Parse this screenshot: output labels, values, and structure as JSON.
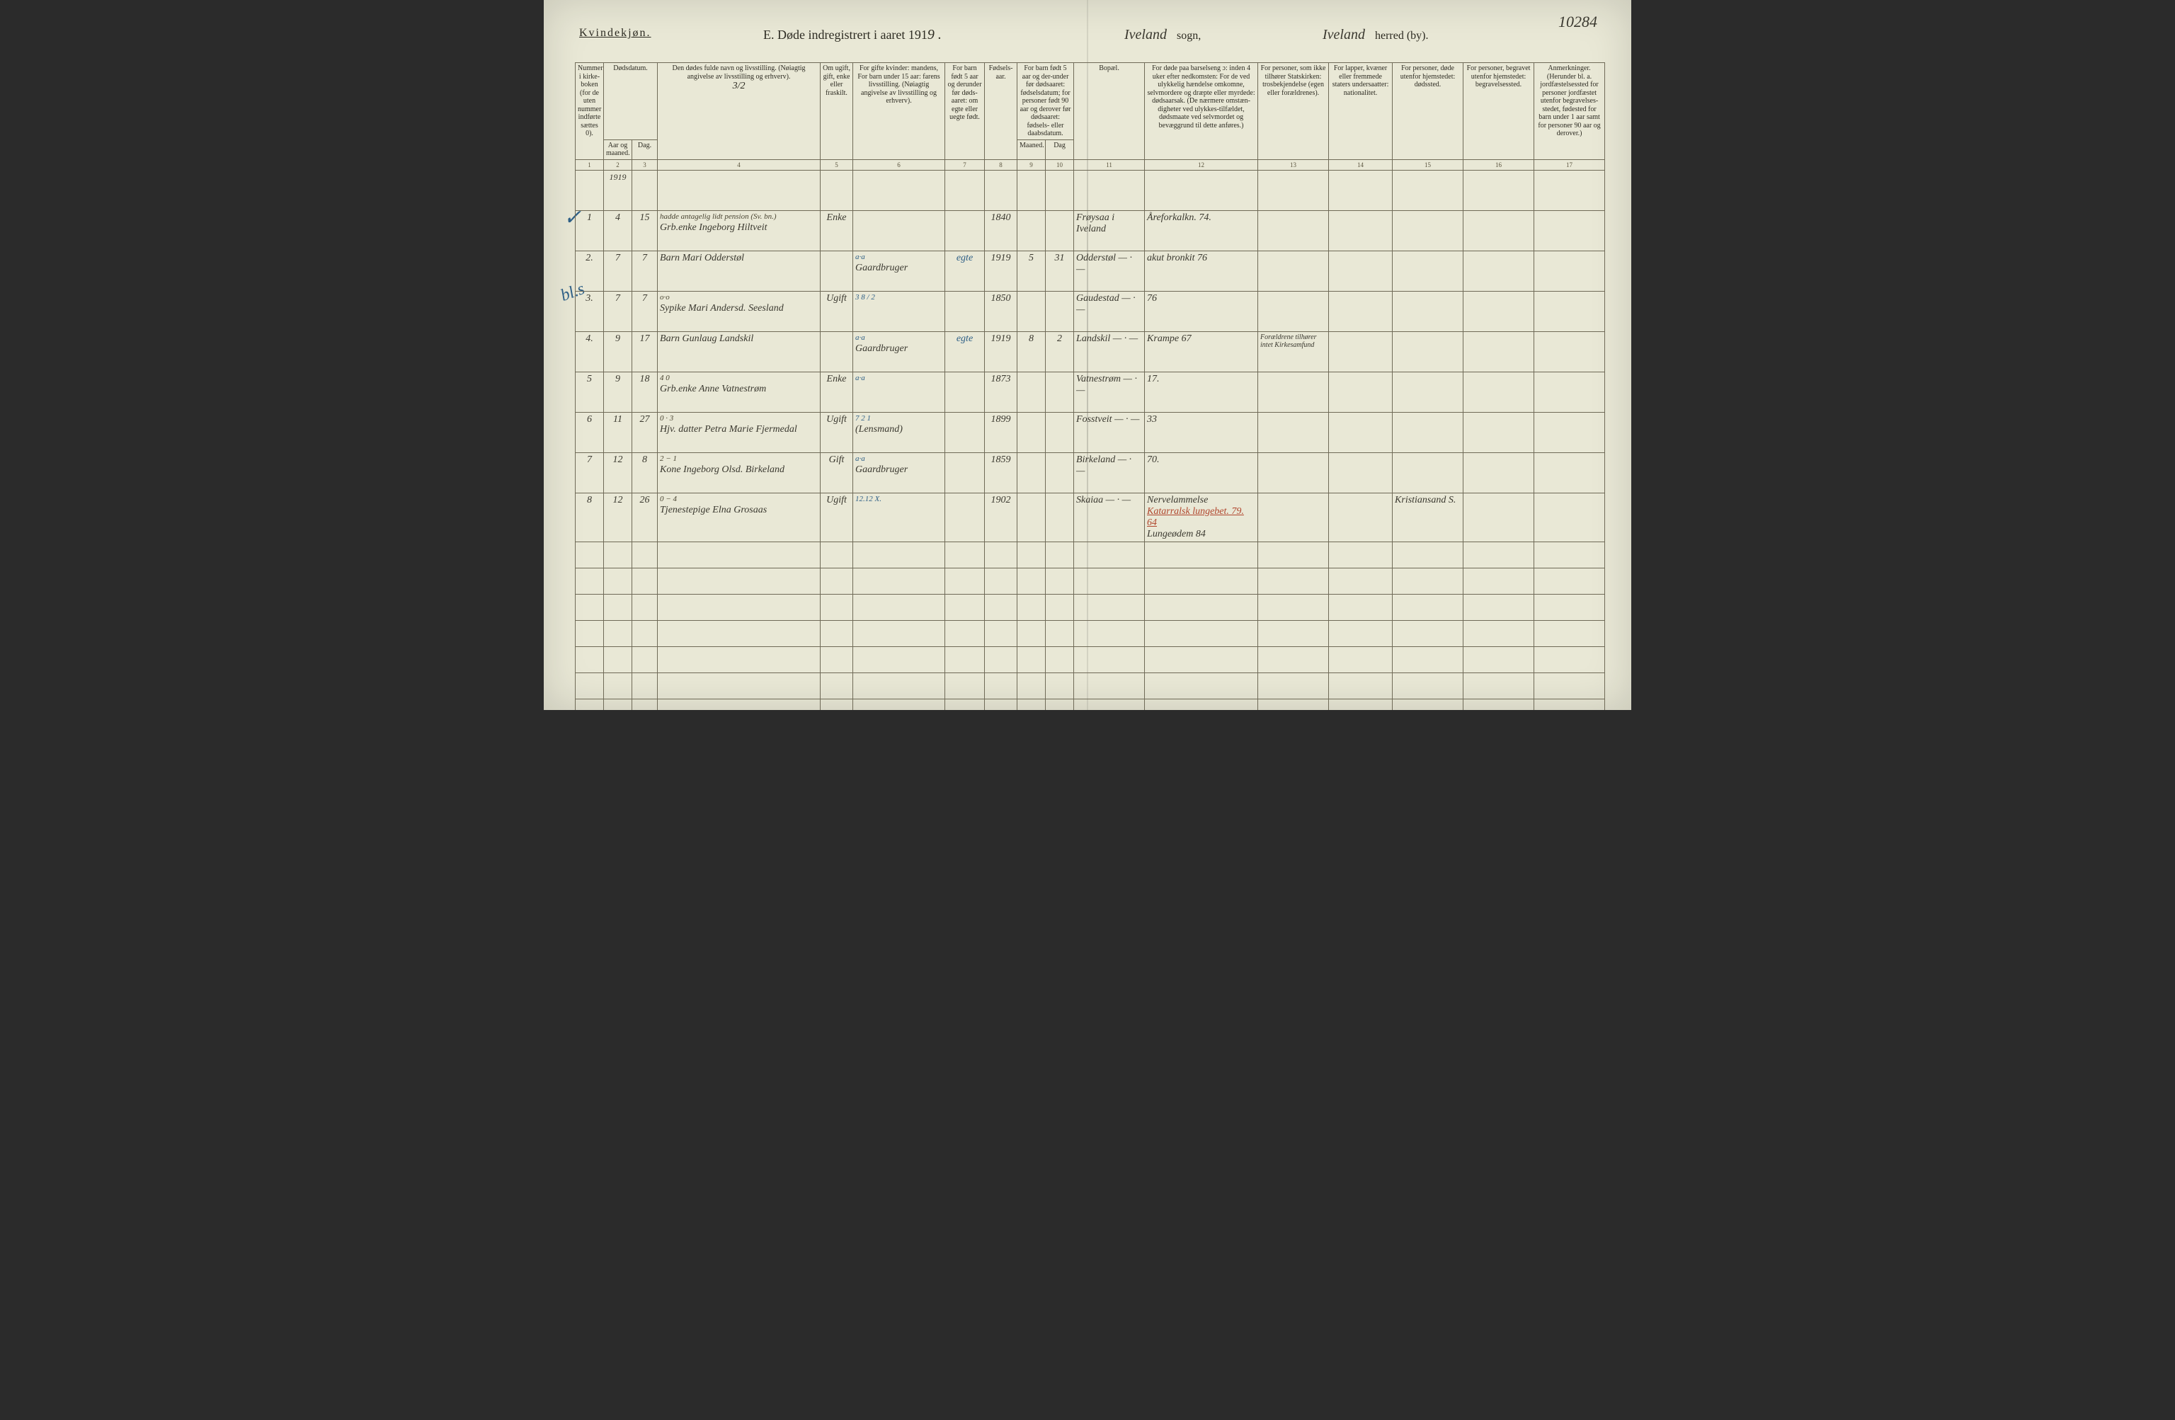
{
  "page_number_hand": "10284",
  "header": {
    "gender": "Kvindekjøn.",
    "title_prefix": "E.  Døde indregistrert i aaret 191",
    "year_suffix": "9 .",
    "sogn_hand": "Iveland",
    "sogn_label": "sogn,",
    "herred_hand": "Iveland",
    "herred_label": "herred (by)."
  },
  "columns": {
    "c1": "Nummer i kirke-boken (for de uten nummer indførte sættes 0).",
    "c2a": "Dødsdatum.",
    "c2": "Aar og maaned.",
    "c3": "Dag.",
    "c4": "Den dødes fulde navn og livsstilling.\n(Nøiagtig angivelse av livsstilling og erhverv).",
    "c4_hand": "3/2",
    "c5": "Om ugift, gift, enke eller fraskilt.",
    "c6": "For gifte kvinder:\nmandens,\nFor barn under 15 aar:\nfarens livsstilling.\n(Nøiagtig angivelse av livsstilling og erhverv).",
    "c7": "For barn født 5 aar og derunder før døds-aaret: om egte eller uegte født.",
    "c8": "Fødsels-aar.",
    "c9_10": "For barn født 5 aar og der-under før dødsaaret: fødselsdatum; for personer født 90 aar og derover før dødsaaret: fødsels- eller daabsdatum.",
    "c9": "Maaned.",
    "c10": "Dag",
    "c11": "Bopæl.",
    "c12": "For døde paa barselseng ɔ: inden 4 uker efter nedkomsten: For de ved ulykkelig hændelse omkomne, selvmordere og dræpte eller myrdede: dødsaarsak. (De nærmere omstæn-digheter ved ulykkes-tilfældet, dødsmaate ved selvmordet og bevæggrund til dette anføres.)",
    "c13": "For personer, som ikke tilhører Statskirken: trosbekjendelse (egen eller forældrenes).",
    "c14": "For lapper, kvæner eller fremmede staters undersaatter: nationalitet.",
    "c15": "For personer, døde utenfor hjemstedet: dødssted.",
    "c16": "For personer, begravet utenfor hjemstedet: begravelsessted.",
    "c17": "Anmerkninger.\n(Herunder bl. a. jordfæstelsessted for personer jordfæstet utenfor begravelses-stedet, fødested for barn under 1 aar samt for personer 90 aar og derover.)"
  },
  "colnums": [
    "1",
    "2",
    "3",
    "4",
    "5",
    "6",
    "7",
    "8",
    "9",
    "10",
    "11",
    "12",
    "13",
    "14",
    "15",
    "16",
    "17"
  ],
  "year_row": "1919",
  "rows": [
    {
      "n": "1",
      "mnd": "4",
      "dag": "15",
      "name_sup": "hadde antagelig lidt pension (Sv. bn.)",
      "name": "Grb.enke Ingeborg Hiltveit",
      "stand": "Enke",
      "c6_sup": "",
      "c6": "",
      "c7": "",
      "c8": "1840",
      "c9": "",
      "c10": "",
      "c11": "Frøysaa i Iveland",
      "c12": "Åreforkalkn. 74.",
      "c13": "",
      "c14": "",
      "c15": "",
      "c16": "",
      "c17": ""
    },
    {
      "n": "2.",
      "mnd": "7",
      "dag": "7",
      "name_sup": "",
      "name": "Barn Mari Odderstøl",
      "stand": "",
      "c6_sup": "a·a",
      "c6": "Gaardbruger",
      "c7": "egte",
      "c8": "1919",
      "c9": "5",
      "c10": "31",
      "c11": "Odderstøl — · —",
      "c12": "akut bronkit  76",
      "c13": "",
      "c14": "",
      "c15": "",
      "c16": "",
      "c17": ""
    },
    {
      "n": "3.",
      "mnd": "7",
      "dag": "7",
      "name_sup": "o·o",
      "name": "Sypike Mari Andersd. Seesland",
      "stand": "Ugift",
      "c6_sup": "3 8 / 2",
      "c6": "",
      "c7": "",
      "c8": "1850",
      "c9": "",
      "c10": "",
      "c11": "Gaudestad — · —",
      "c12": "76",
      "c13": "",
      "c14": "",
      "c15": "",
      "c16": "",
      "c17": ""
    },
    {
      "n": "4.",
      "mnd": "9",
      "dag": "17",
      "name_sup": "",
      "name": "Barn Gunlaug Landskil",
      "stand": "",
      "c6_sup": "a·a",
      "c6": "Gaardbruger",
      "c7": "egte",
      "c8": "1919",
      "c9": "8",
      "c10": "2",
      "c11": "Landskil — · —",
      "c12": "Krampe  67",
      "c13": "Forældrene tilhører intet Kirkesamfund",
      "c14": "",
      "c15": "",
      "c16": "",
      "c17": ""
    },
    {
      "n": "5",
      "mnd": "9",
      "dag": "18",
      "name_sup": "4 0",
      "name": "Grb.enke Anne Vatnestrøm",
      "stand": "Enke",
      "c6_sup": "a·a",
      "c6": "",
      "c7": "",
      "c8": "1873",
      "c9": "",
      "c10": "",
      "c11": "Vatnestrøm — · —",
      "c12": "17.",
      "c13": "",
      "c14": "",
      "c15": "",
      "c16": "",
      "c17": ""
    },
    {
      "n": "6",
      "mnd": "11",
      "dag": "27",
      "name_sup": "0 · 3",
      "name": "Hjv. datter Petra Marie Fjermedal",
      "stand": "Ugift",
      "c6_sup": "7 2 1",
      "c6": "(Lensmand)",
      "c7": "",
      "c8": "1899",
      "c9": "",
      "c10": "",
      "c11": "Fosstveit — · —",
      "c12": "33",
      "c13": "",
      "c14": "",
      "c15": "",
      "c16": "",
      "c17": ""
    },
    {
      "n": "7",
      "mnd": "12",
      "dag": "8",
      "name_sup": "2 − 1",
      "name": "Kone Ingeborg Olsd. Birkeland",
      "stand": "Gift",
      "c6_sup": "a·a",
      "c6": "Gaardbruger",
      "c7": "",
      "c8": "1859",
      "c9": "",
      "c10": "",
      "c11": "Birkeland — · —",
      "c12": "70.",
      "c13": "",
      "c14": "",
      "c15": "",
      "c16": "",
      "c17": ""
    },
    {
      "n": "8",
      "mnd": "12",
      "dag": "26",
      "name_sup": "0 − 4",
      "name": "Tjenestepige Elna Grosaas",
      "stand": "Ugift",
      "c6_sup": "12.12 X.",
      "c6": "",
      "c7": "",
      "c8": "1902",
      "c9": "",
      "c10": "",
      "c11": "Skaiaa — · —",
      "c12": "Nervelammelse\nKatarralsk lungebet. 79.  64\nLungeødem  84",
      "c13": "",
      "c14": "",
      "c15": "Kristiansand S.",
      "c16": "",
      "c17": ""
    }
  ],
  "blank_rows": 8,
  "marks": {
    "tick_row2": "✓",
    "diag_row4": "bl.s"
  },
  "style": {
    "page_bg": "#e9e8d6",
    "rule": "#6f6a57",
    "ink": "#3a382f",
    "ink_blue": "#2e5f86",
    "ink_red": "#b0452c"
  }
}
